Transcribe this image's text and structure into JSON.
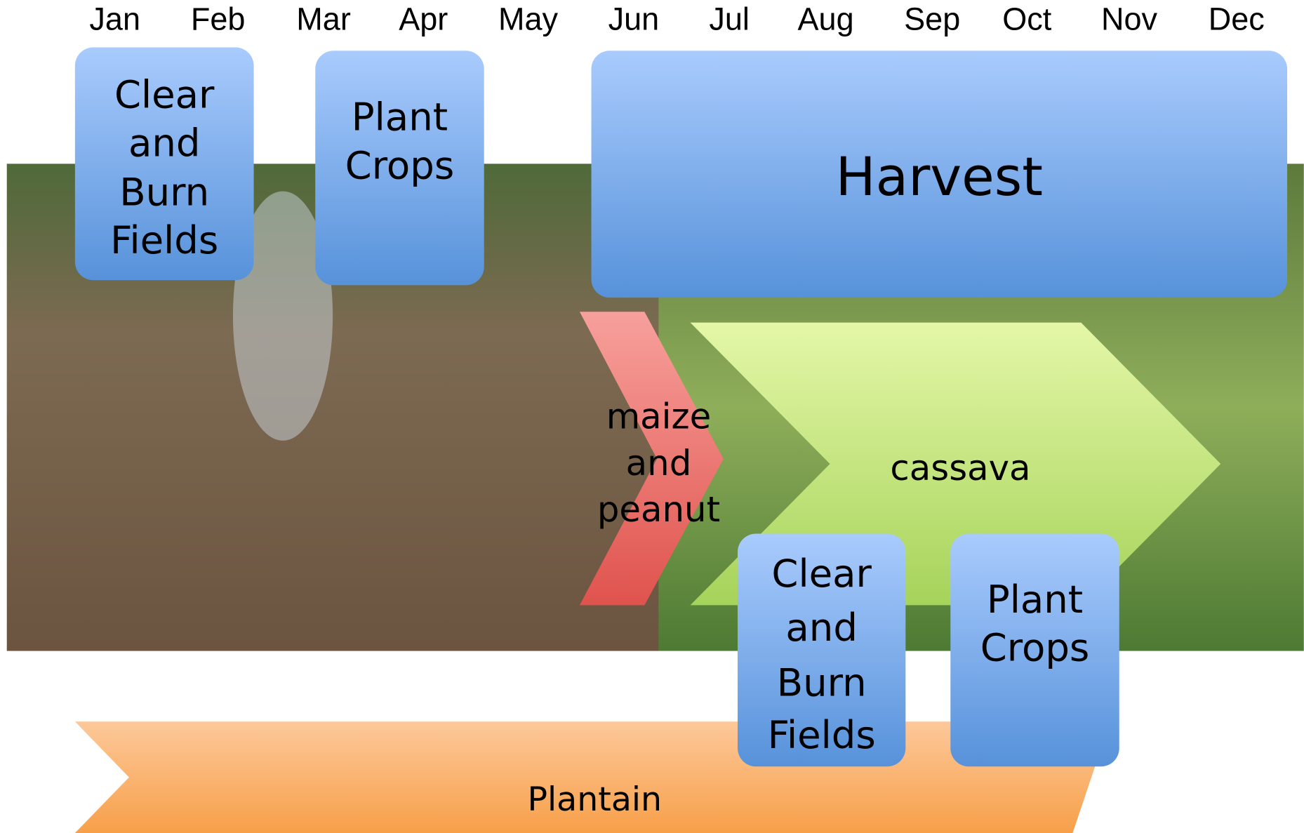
{
  "months": [
    "Jan",
    "Feb",
    "Mar",
    "Apr",
    "May",
    "Jun",
    "Jul",
    "Aug",
    "Sep",
    "Oct",
    "Nov",
    "Dec"
  ],
  "activities": [
    {
      "lines": [
        "Clear",
        "and",
        "Burn",
        "Fields"
      ]
    },
    {
      "lines": [
        "Plant",
        "Crops"
      ]
    },
    {
      "lines": [
        "Harvest"
      ]
    },
    {
      "lines": [
        "Clear",
        "and",
        "Burn",
        "Fields"
      ]
    },
    {
      "lines": [
        "Plant",
        "Crops"
      ]
    }
  ],
  "crops": [
    {
      "lines": [
        "maize",
        "and",
        "peanut"
      ]
    },
    {
      "lines": [
        "cassava"
      ]
    },
    {
      "lines": [
        "Plantain"
      ]
    }
  ]
}
